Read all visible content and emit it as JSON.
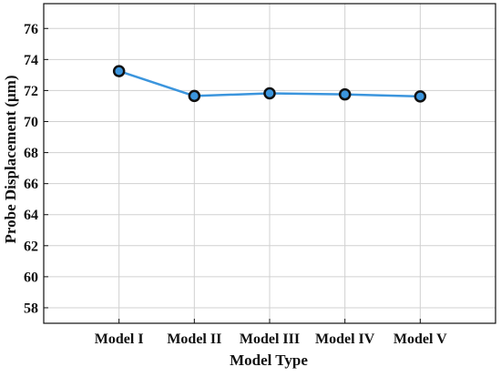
{
  "chart_data": {
    "type": "line",
    "title": "",
    "xlabel": "Model Type",
    "ylabel": "Probe Displacement (μm)",
    "categories": [
      "Model I",
      "Model II",
      "Model III",
      "Model IV",
      "Model V"
    ],
    "series": [
      {
        "values": [
          73.25,
          71.65,
          71.82,
          71.75,
          71.62
        ]
      }
    ],
    "ylim": [
      57,
      77.6
    ],
    "yticks": [
      58,
      60,
      62,
      64,
      66,
      68,
      70,
      72,
      74,
      76
    ],
    "grid": true,
    "legend": "none",
    "colors": {
      "line": "#3b95dd",
      "marker_fill": "#3b95dd",
      "marker_edge": "#111111",
      "grid": "#d0d0d0",
      "axis": "#111111"
    }
  }
}
